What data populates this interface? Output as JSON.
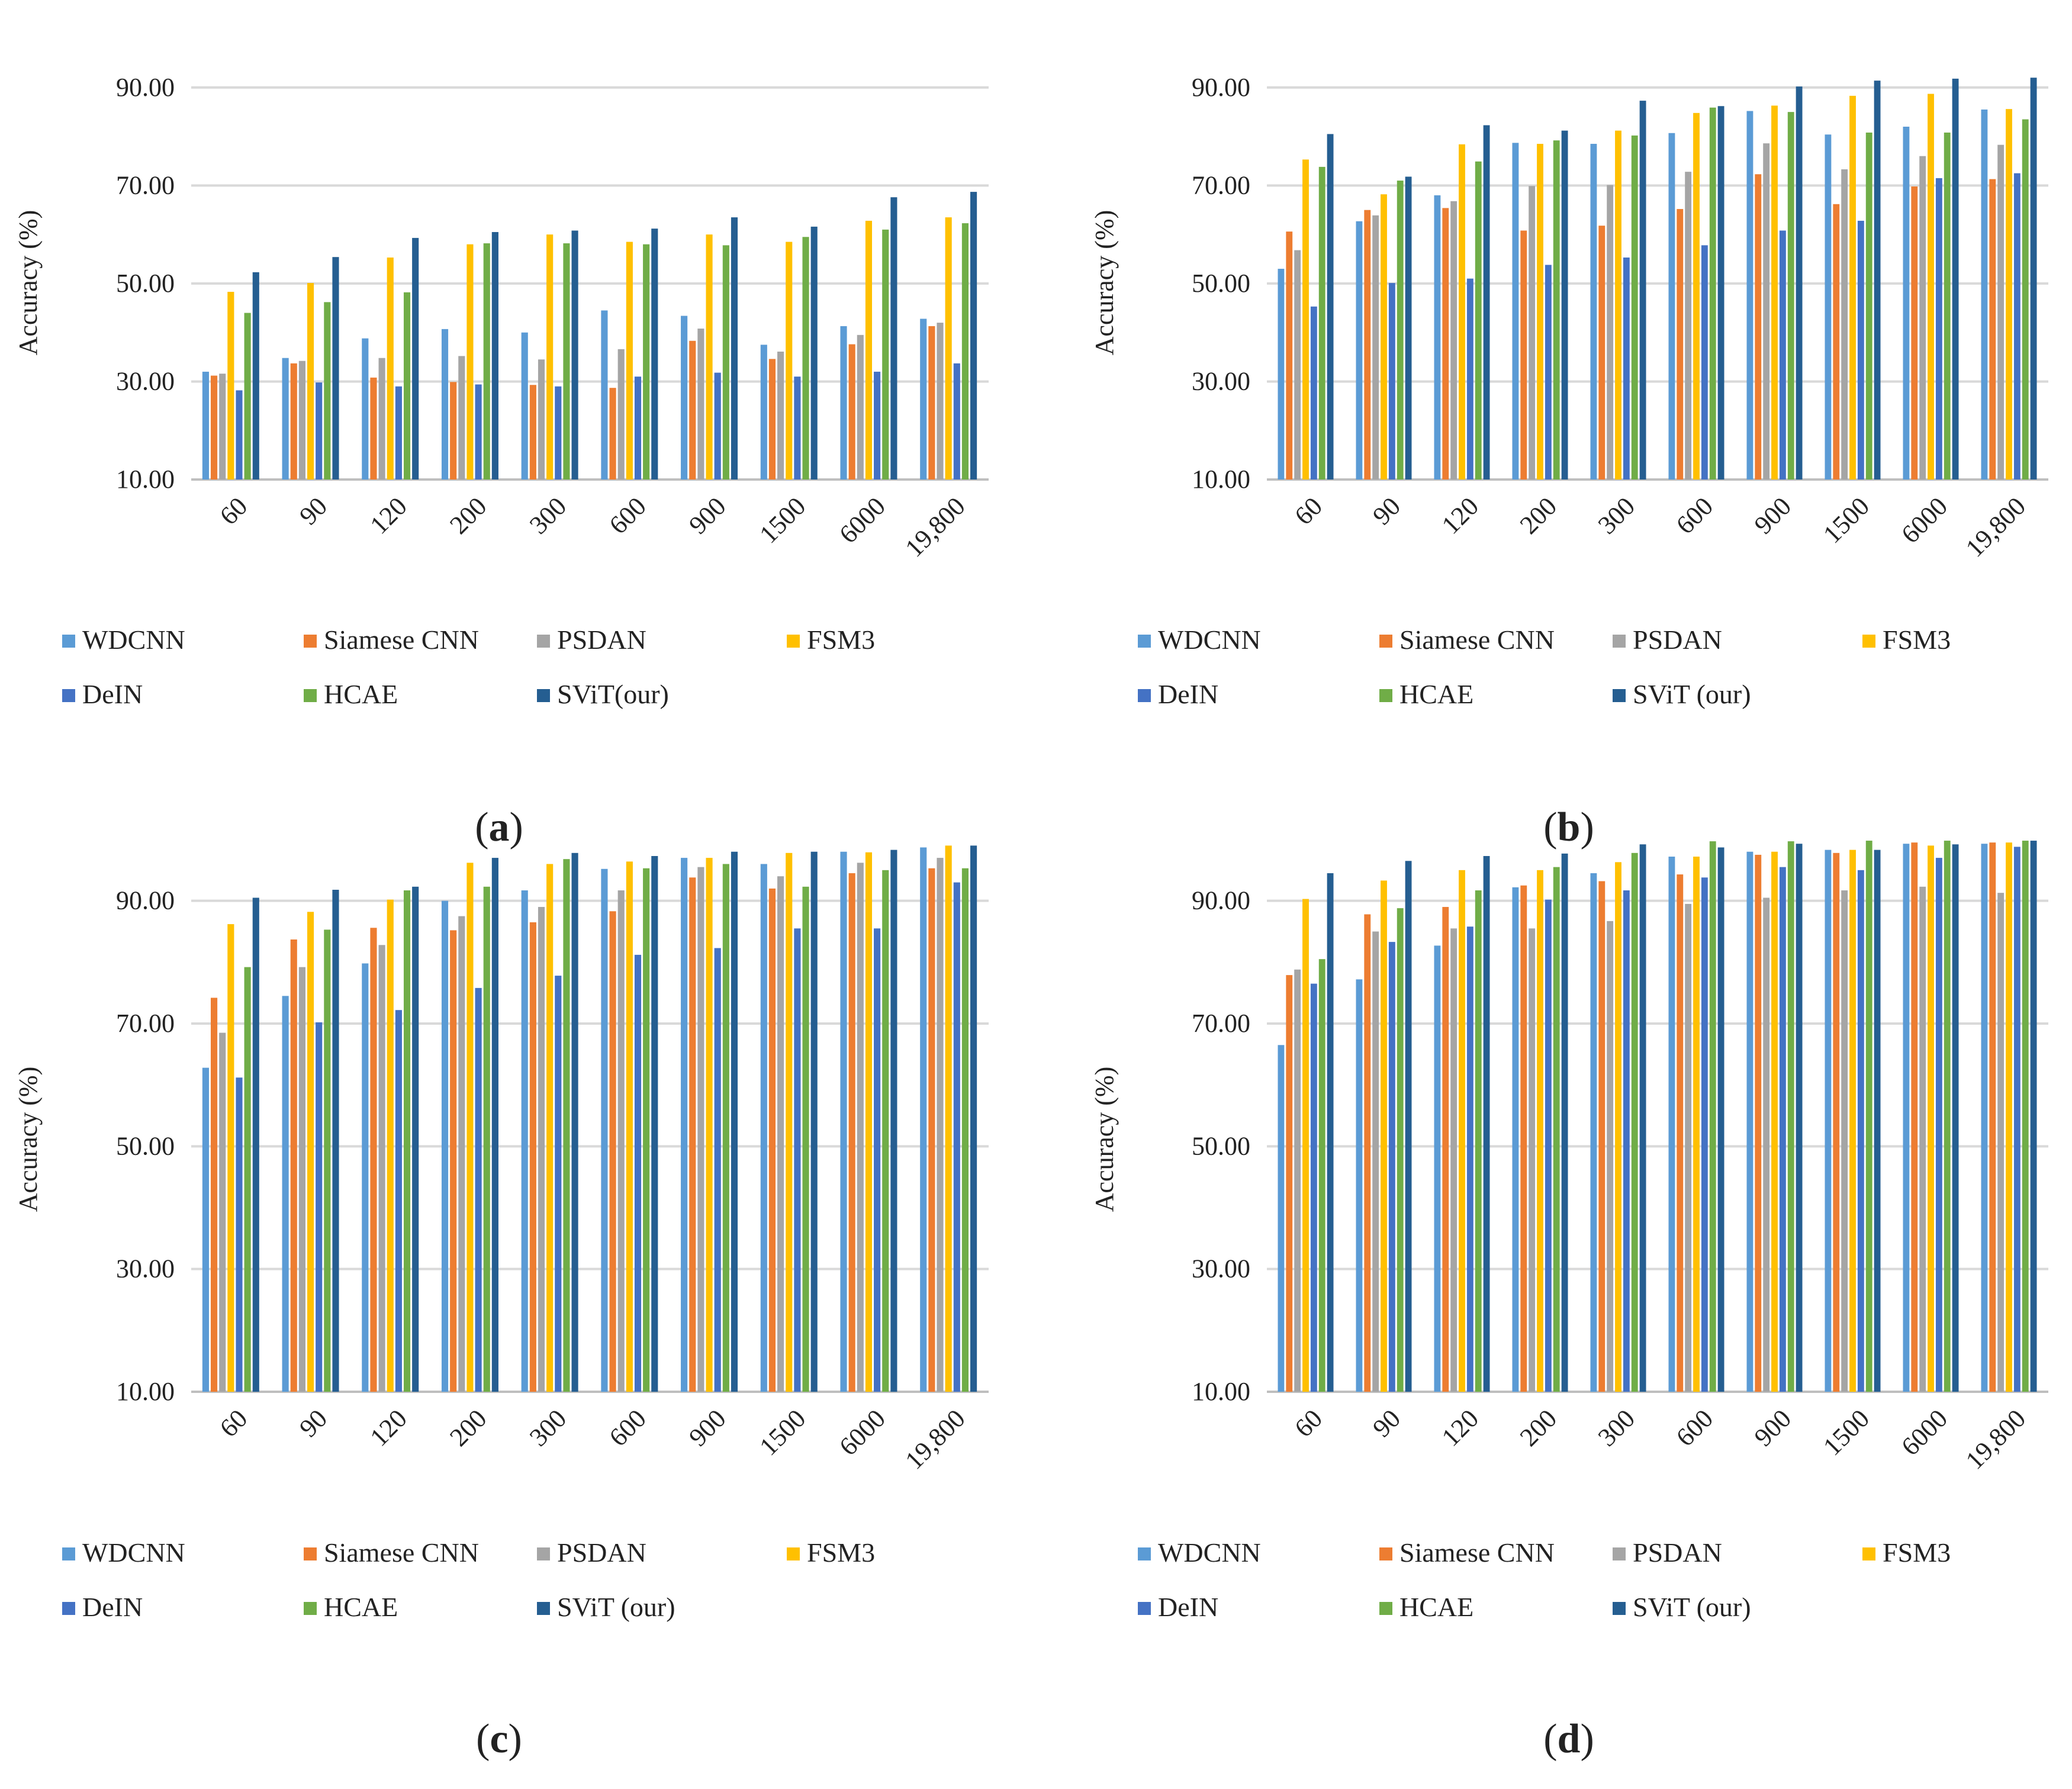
{
  "legend_markers": {
    "left": "■",
    "right": "■"
  },
  "chart_data": [
    {
      "type": "bar",
      "panel_label": "(a)",
      "ylabel": "Accuracy   (%)",
      "ylim": [
        10,
        100
      ],
      "yticks": [
        10,
        30,
        50,
        70,
        90
      ],
      "ytick_labels": [
        "10.00",
        "30.00",
        "50.00",
        "70.00",
        "90.00"
      ],
      "categories": [
        "60",
        "90",
        "120",
        "200",
        "300",
        "600",
        "900",
        "1500",
        "6000",
        "19,800"
      ],
      "legend_position": "bottom",
      "series": [
        {
          "name": "WDCNN",
          "color": "#5b9bd5",
          "values": [
            32.0,
            34.8,
            38.8,
            40.7,
            40.0,
            44.5,
            43.4,
            37.5,
            41.3,
            42.8
          ]
        },
        {
          "name": "Siamese CNN",
          "color": "#ed7d31",
          "values": [
            31.2,
            33.7,
            30.8,
            29.9,
            29.3,
            28.7,
            38.3,
            34.6,
            37.6,
            41.3
          ]
        },
        {
          "name": "PSDAN",
          "color": "#a5a5a5",
          "values": [
            31.6,
            34.2,
            34.8,
            35.2,
            34.5,
            36.6,
            40.8,
            36.1,
            39.5,
            42.0
          ]
        },
        {
          "name": "FSM3",
          "color": "#ffc000",
          "values": [
            48.3,
            50.1,
            55.3,
            58.0,
            60.0,
            58.5,
            60.0,
            58.5,
            62.8,
            63.5
          ]
        },
        {
          "name": "DeIN",
          "color": "#4472c4",
          "values": [
            28.2,
            29.8,
            29.0,
            29.4,
            29.0,
            31.0,
            31.8,
            31.0,
            32.0,
            33.7
          ]
        },
        {
          "name": "HCAE",
          "color": "#70ad47",
          "values": [
            44.0,
            46.2,
            48.2,
            58.2,
            58.2,
            58.0,
            57.8,
            59.5,
            61.0,
            62.3
          ]
        },
        {
          "name": "SViT(our)",
          "color": "#255e91",
          "values": [
            52.3,
            55.4,
            59.3,
            60.5,
            60.8,
            61.2,
            63.5,
            61.6,
            67.6,
            68.7
          ]
        }
      ]
    },
    {
      "type": "bar",
      "panel_label": "(b)",
      "ylabel": "Accuracy   (%)",
      "ylim": [
        10,
        100
      ],
      "yticks": [
        10,
        30,
        50,
        70,
        90
      ],
      "ytick_labels": [
        "10.00",
        "30.00",
        "50.00",
        "70.00",
        "90.00"
      ],
      "categories": [
        "60",
        "90",
        "120",
        "200",
        "300",
        "600",
        "900",
        "1500",
        "6000",
        "19,800"
      ],
      "legend_position": "bottom",
      "series": [
        {
          "name": "WDCNN",
          "color": "#5b9bd5",
          "values": [
            53.0,
            62.7,
            68.0,
            78.7,
            78.5,
            80.7,
            85.2,
            80.4,
            82.0,
            85.5
          ]
        },
        {
          "name": "Siamese CNN",
          "color": "#ed7d31",
          "values": [
            60.6,
            65.0,
            65.4,
            60.8,
            61.8,
            65.2,
            72.3,
            66.2,
            69.8,
            71.3
          ]
        },
        {
          "name": "PSDAN",
          "color": "#a5a5a5",
          "values": [
            56.8,
            63.9,
            66.8,
            69.9,
            70.1,
            72.8,
            78.6,
            73.3,
            76.0,
            78.3
          ]
        },
        {
          "name": "FSM3",
          "color": "#ffc000",
          "values": [
            75.3,
            68.2,
            78.4,
            78.5,
            81.2,
            84.8,
            86.3,
            88.3,
            88.7,
            85.6
          ]
        },
        {
          "name": "DeIN",
          "color": "#4472c4",
          "values": [
            45.3,
            50.1,
            51.0,
            53.8,
            55.3,
            57.8,
            60.8,
            62.8,
            71.5,
            72.5
          ]
        },
        {
          "name": "HCAE",
          "color": "#70ad47",
          "values": [
            73.8,
            71.0,
            74.9,
            79.2,
            80.2,
            85.9,
            85.0,
            80.8,
            80.8,
            83.5
          ]
        },
        {
          "name": "SViT (our)",
          "color": "#255e91",
          "values": [
            80.5,
            71.8,
            82.3,
            81.2,
            87.3,
            86.2,
            90.2,
            91.4,
            91.8,
            92.0
          ]
        }
      ]
    },
    {
      "type": "bar",
      "panel_label": "(c)",
      "ylabel": "Accuracy   (%)",
      "ylim": [
        10,
        100
      ],
      "yticks": [
        10,
        30,
        50,
        70,
        90
      ],
      "ytick_labels": [
        "10.00",
        "30.00",
        "50.00",
        "70.00",
        "90.00"
      ],
      "categories": [
        "60",
        "90",
        "120",
        "200",
        "300",
        "600",
        "900",
        "1500",
        "6000",
        "19,800"
      ],
      "legend_position": "bottom",
      "series": [
        {
          "name": "WDCNN",
          "color": "#5b9bd5",
          "values": [
            62.8,
            74.5,
            79.8,
            90.0,
            91.7,
            95.2,
            97.0,
            96.0,
            98.0,
            98.7
          ]
        },
        {
          "name": "Siamese CNN",
          "color": "#ed7d31",
          "values": [
            74.2,
            83.7,
            85.6,
            85.2,
            86.5,
            88.3,
            93.8,
            92.0,
            94.5,
            95.3
          ]
        },
        {
          "name": "PSDAN",
          "color": "#a5a5a5",
          "values": [
            68.5,
            79.2,
            82.8,
            87.5,
            89.0,
            91.7,
            95.5,
            94.0,
            96.2,
            97.0
          ]
        },
        {
          "name": "FSM3",
          "color": "#ffc000",
          "values": [
            86.2,
            88.2,
            90.2,
            96.2,
            96.0,
            96.4,
            97.0,
            97.8,
            97.9,
            99.0
          ]
        },
        {
          "name": "DeIN",
          "color": "#4472c4",
          "values": [
            61.2,
            70.2,
            72.2,
            75.8,
            77.8,
            81.2,
            82.3,
            85.5,
            85.5,
            93.0
          ]
        },
        {
          "name": "HCAE",
          "color": "#70ad47",
          "values": [
            79.2,
            85.3,
            91.7,
            92.3,
            96.8,
            95.3,
            96.0,
            92.3,
            95.0,
            95.3
          ]
        },
        {
          "name": "SViT (our)",
          "color": "#255e91",
          "values": [
            90.5,
            91.8,
            92.3,
            97.0,
            97.8,
            97.3,
            98.0,
            98.0,
            98.3,
            99.0
          ]
        }
      ]
    },
    {
      "type": "bar",
      "panel_label": "(d)",
      "ylabel": "Accuracy   (%)",
      "ylim": [
        10,
        100
      ],
      "yticks": [
        10,
        30,
        50,
        70,
        90
      ],
      "ytick_labels": [
        "10.00",
        "30.00",
        "50.00",
        "70.00",
        "90.00"
      ],
      "categories": [
        "60",
        "90",
        "120",
        "200",
        "300",
        "600",
        "900",
        "1500",
        "6000",
        "19,800"
      ],
      "legend_position": "bottom",
      "series": [
        {
          "name": "WDCNN",
          "color": "#5b9bd5",
          "values": [
            66.5,
            77.2,
            82.7,
            92.2,
            94.5,
            97.2,
            98.0,
            98.3,
            99.3,
            99.3
          ]
        },
        {
          "name": "Siamese CNN",
          "color": "#ed7d31",
          "values": [
            77.9,
            87.8,
            89.0,
            92.5,
            93.2,
            94.3,
            97.5,
            97.8,
            99.5,
            99.5
          ]
        },
        {
          "name": "PSDAN",
          "color": "#a5a5a5",
          "values": [
            78.8,
            85.0,
            85.5,
            85.5,
            86.7,
            89.5,
            90.5,
            91.7,
            92.3,
            91.3
          ]
        },
        {
          "name": "FSM3",
          "color": "#ffc000",
          "values": [
            90.3,
            93.3,
            95.0,
            95.0,
            96.3,
            97.2,
            98.0,
            98.3,
            99.0,
            99.5
          ]
        },
        {
          "name": "DeIN",
          "color": "#4472c4",
          "values": [
            76.5,
            83.3,
            85.8,
            90.2,
            91.7,
            93.8,
            95.5,
            95.0,
            97.0,
            98.8
          ]
        },
        {
          "name": "HCAE",
          "color": "#70ad47",
          "values": [
            80.5,
            88.8,
            91.7,
            95.5,
            97.8,
            99.7,
            99.7,
            99.8,
            99.8,
            99.8
          ]
        },
        {
          "name": "SViT (our)",
          "color": "#255e91",
          "values": [
            94.5,
            96.5,
            97.3,
            97.7,
            99.2,
            98.7,
            99.3,
            98.3,
            99.2,
            99.8
          ]
        }
      ]
    }
  ]
}
